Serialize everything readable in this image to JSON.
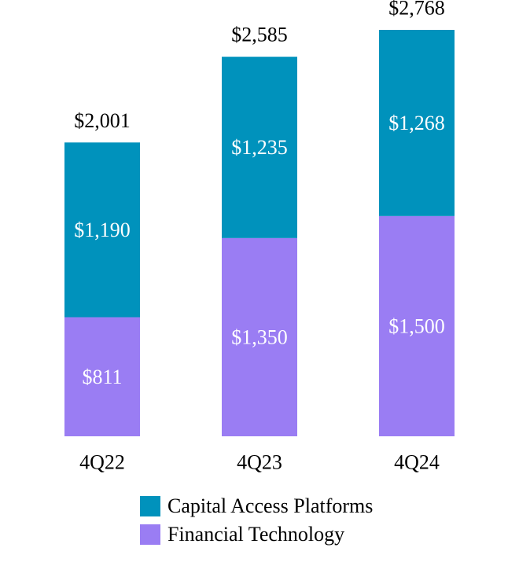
{
  "colors": {
    "capital_access": "#0092BC",
    "fintech": "#9A7DF3",
    "segment_text": "#ffffff",
    "axis_text": "#000000"
  },
  "chart_data": {
    "type": "bar",
    "stacked": true,
    "categories": [
      "4Q22",
      "4Q23",
      "4Q24"
    ],
    "series": [
      {
        "name": "Financial Technology",
        "values": [
          811,
          1350,
          1500
        ],
        "labels": [
          "$811",
          "$1,350",
          "$1,500"
        ],
        "color_key": "fintech"
      },
      {
        "name": "Capital Access Platforms",
        "values": [
          1190,
          1235,
          1268
        ],
        "labels": [
          "$1,190",
          "$1,235",
          "$1,268"
        ],
        "color_key": "capital_access"
      }
    ],
    "totals": [
      2001,
      2585,
      2768
    ],
    "total_labels": [
      "$2,001",
      "$2,585",
      "$2,768"
    ],
    "title": "",
    "xlabel": "",
    "ylabel": "",
    "ylim": [
      0,
      2800
    ],
    "grid": false,
    "legend_position": "bottom"
  },
  "legend": {
    "items": [
      {
        "label": "Capital Access Platforms",
        "color_key": "capital_access"
      },
      {
        "label": "Financial Technology",
        "color_key": "fintech"
      }
    ]
  }
}
